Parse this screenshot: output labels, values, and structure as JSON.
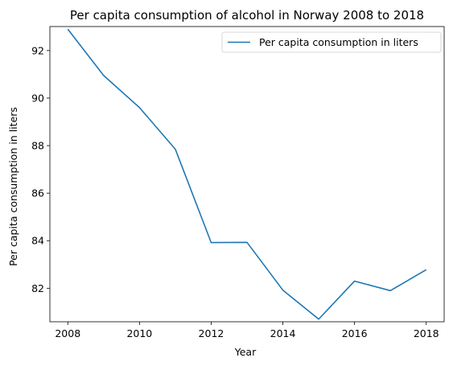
{
  "chart_data": {
    "type": "line",
    "title": "Per capita consumption of alcohol in Norway 2008 to 2018",
    "xlabel": "Year",
    "ylabel": "Per capita consumption in liters",
    "x": [
      2008,
      2009,
      2010,
      2011,
      2012,
      2013,
      2014,
      2015,
      2016,
      2017,
      2018
    ],
    "series": [
      {
        "name": "Per capita consumption in liters",
        "color": "#1f77b4",
        "values": [
          92.9,
          90.95,
          89.6,
          87.85,
          83.92,
          83.93,
          81.92,
          80.7,
          82.3,
          81.9,
          82.78
        ]
      }
    ],
    "xlim": [
      2007.5,
      2018.5
    ],
    "ylim": [
      80.59,
      93.01
    ],
    "xticks": [
      "2008",
      "2010",
      "2012",
      "2014",
      "2016",
      "2018"
    ],
    "yticks": [
      "82",
      "84",
      "86",
      "88",
      "90",
      "92"
    ],
    "grid": false,
    "legend_position": "top-right"
  }
}
